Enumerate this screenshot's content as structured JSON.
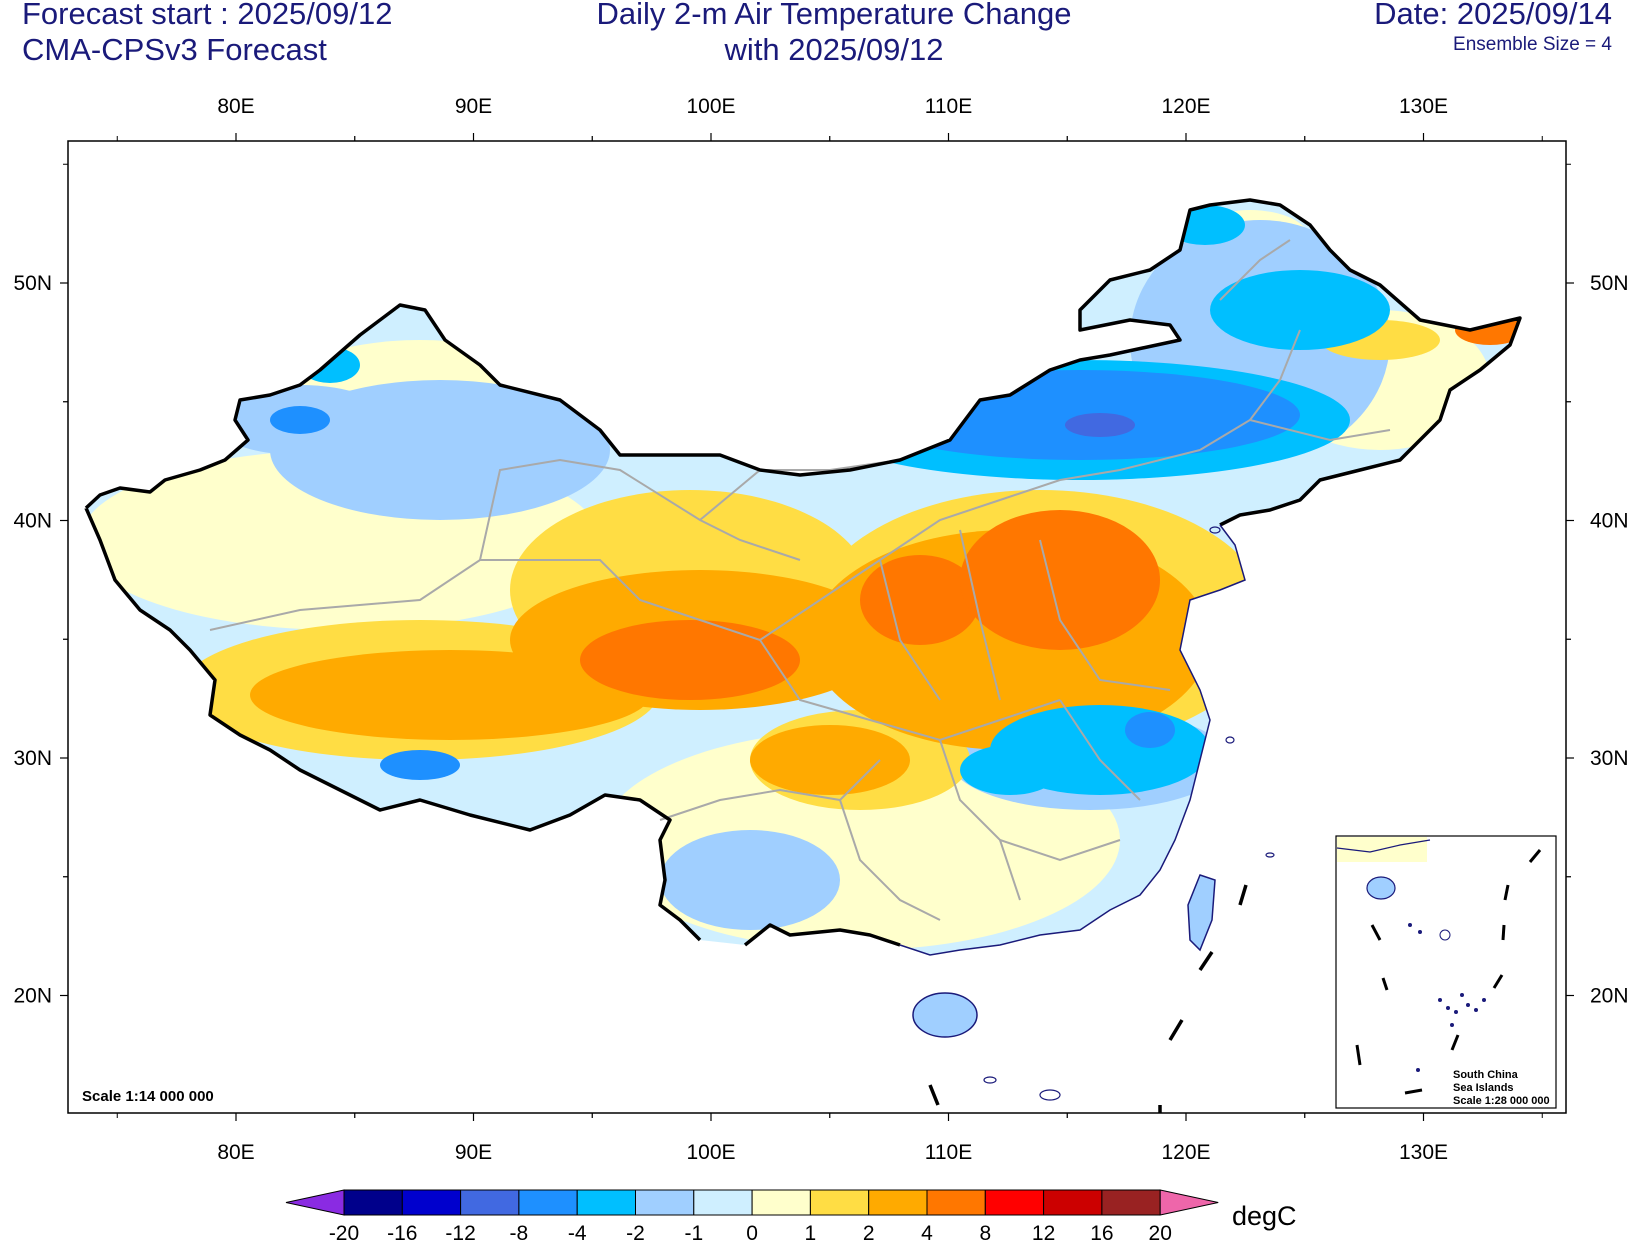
{
  "header": {
    "forecast_start": "Forecast start : 2025/09/12",
    "model": "CMA-CPSv3 Forecast",
    "title_line1": "Daily 2-m Air Temperature Change",
    "title_line2": "with 2025/09/12",
    "date": "Date: 2025/09/14",
    "ensemble": "Ensemble Size = 4"
  },
  "axes": {
    "lon_labels": [
      "80E",
      "90E",
      "100E",
      "110E",
      "120E",
      "130E"
    ],
    "lat_labels": [
      "50N",
      "40N",
      "30N",
      "20N"
    ]
  },
  "map": {
    "scale_note": "Scale 1:14 000 000",
    "inset_label_1": "South China",
    "inset_label_2": "Sea Islands",
    "inset_scale": "Scale 1:28 000 000"
  },
  "colorbar": {
    "unit": "degC",
    "tick_labels": [
      "-20",
      "-16",
      "-12",
      "-8",
      "-4",
      "-2",
      "-1",
      "0",
      "1",
      "2",
      "4",
      "8",
      "12",
      "16",
      "20"
    ],
    "under_color": "#8a2be2",
    "over_color": "#ee66aa",
    "colors": [
      "#00008b",
      "#0000cd",
      "#4169e1",
      "#1e90ff",
      "#00bfff",
      "#a0cfff",
      "#cfefff",
      "#ffffcc",
      "#ffdd44",
      "#ffaa00",
      "#ff7700",
      "#ff0000",
      "#cc0000",
      "#992222"
    ]
  }
}
